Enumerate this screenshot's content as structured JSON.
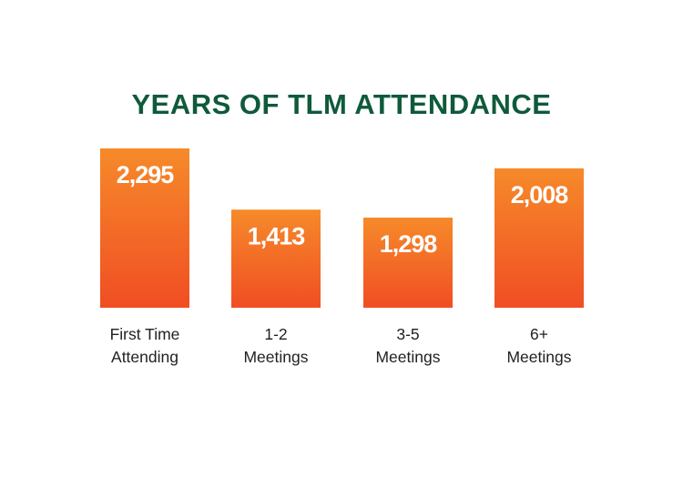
{
  "chart_data": {
    "type": "bar",
    "title": "YEARS OF TLM ATTENDANCE",
    "categories": [
      [
        "First Time",
        "Attending"
      ],
      [
        "1-2",
        "Meetings"
      ],
      [
        "3-5",
        "Meetings"
      ],
      [
        "6+",
        "Meetings"
      ]
    ],
    "values": [
      2295,
      1413,
      1298,
      2008
    ],
    "value_labels": [
      "2,295",
      "1,413",
      "1,298",
      "2,008"
    ],
    "ylim": [
      0,
      2295
    ],
    "grid": false,
    "colors": {
      "bar_top": "#f68a2a",
      "bar_bottom": "#f04e23",
      "title": "#0f5a3a",
      "value_text": "#ffffff",
      "label_text": "#222222"
    }
  }
}
